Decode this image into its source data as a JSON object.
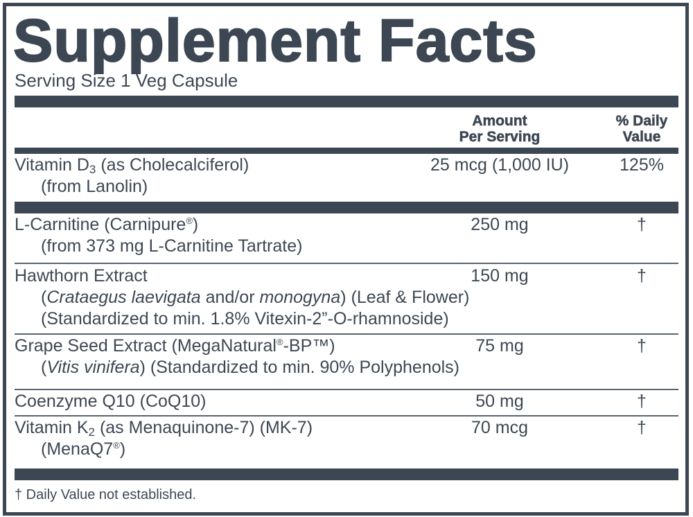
{
  "title": "Supplement Facts",
  "serving_size": "Serving Size 1 Veg Capsule",
  "header": {
    "amount_line1": "Amount",
    "amount_line2": "Per Serving",
    "dv_line1": "% Daily",
    "dv_line2": "Value"
  },
  "rows": [
    {
      "lines": [
        [
          {
            "t": "Vitamin D"
          },
          {
            "t": "3",
            "sub": true
          },
          {
            "t": " (as Cholecalciferol)"
          }
        ],
        [
          {
            "t": "(from Lanolin)"
          }
        ]
      ],
      "amount": "25 mcg (1,000 IU)",
      "dv": "125%"
    },
    {
      "lines": [
        [
          {
            "t": "L-Carnitine (Carnipure"
          },
          {
            "t": "®",
            "sup": true
          },
          {
            "t": ")"
          }
        ],
        [
          {
            "t": "(from 373 mg L-Carnitine Tartrate)"
          }
        ]
      ],
      "amount": "250 mg",
      "dv": "†"
    },
    {
      "lines": [
        [
          {
            "t": "Hawthorn Extract"
          }
        ],
        [
          {
            "t": "("
          },
          {
            "t": "Crataegus laevigata",
            "i": true
          },
          {
            "t": " and/or "
          },
          {
            "t": "monogyna",
            "i": true
          },
          {
            "t": ") (Leaf & Flower)"
          }
        ],
        [
          {
            "t": "(Standardized to min. 1.8% Vitexin-2”-O-rhamnoside)"
          }
        ]
      ],
      "amount": "150 mg",
      "dv": "†"
    },
    {
      "lines": [
        [
          {
            "t": "Grape Seed Extract (MegaNatural"
          },
          {
            "t": "®",
            "sup": true
          },
          {
            "t": "-BP™)"
          }
        ],
        [
          {
            "t": "("
          },
          {
            "t": "Vitis vinifera",
            "i": true
          },
          {
            "t": ") (Standardized to min. 90% Polyphenols)"
          }
        ]
      ],
      "amount": "75 mg",
      "dv": "†"
    },
    {
      "lines": [
        [
          {
            "t": "Coenzyme Q10 (CoQ10)"
          }
        ]
      ],
      "amount": "50 mg",
      "dv": "†"
    },
    {
      "lines": [
        [
          {
            "t": "Vitamin K"
          },
          {
            "t": "2",
            "sub": true
          },
          {
            "t": " (as Menaquinone-7) (MK-7)"
          }
        ],
        [
          {
            "t": "(MenaQ7"
          },
          {
            "t": "®",
            "sup": true
          },
          {
            "t": ")"
          }
        ]
      ],
      "amount": "70 mcg",
      "dv": "†"
    }
  ],
  "footnote": "† Daily Value not established.",
  "colors": {
    "ink": "#3d4753",
    "background": "#ffffff"
  }
}
